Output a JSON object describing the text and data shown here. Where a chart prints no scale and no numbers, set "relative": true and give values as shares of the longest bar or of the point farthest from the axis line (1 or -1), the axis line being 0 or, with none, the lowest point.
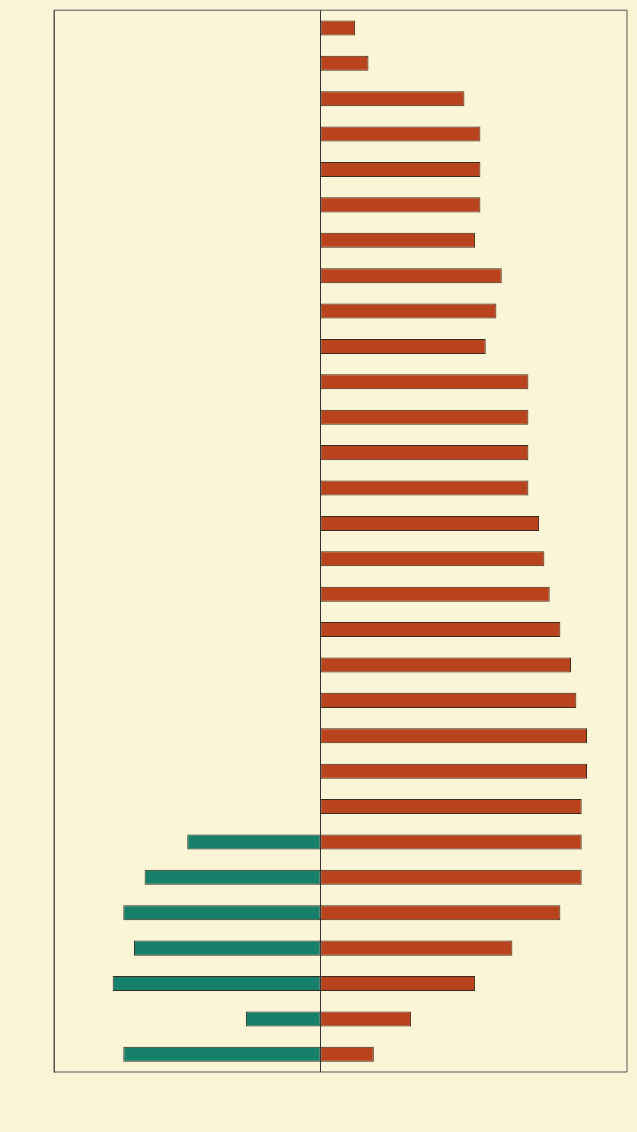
{
  "chart_data": {
    "type": "bar",
    "orientation": "horizontal",
    "stacked": true,
    "relative": true,
    "categories": [
      null,
      null,
      null,
      null,
      null,
      null,
      null,
      null,
      null,
      null,
      null,
      null,
      null,
      null,
      null,
      null,
      null,
      null,
      null,
      null,
      null,
      null,
      null,
      null,
      null,
      null,
      null,
      null,
      null,
      null
    ],
    "series": [
      {
        "color": "#b8431c",
        "values": [
          0.13,
          0.18,
          0.54,
          0.6,
          0.6,
          0.6,
          0.58,
          0.68,
          0.66,
          0.62,
          0.78,
          0.78,
          0.78,
          0.78,
          0.82,
          0.84,
          0.86,
          0.9,
          0.94,
          0.96,
          1,
          1,
          0.98,
          0.98,
          0.98,
          0.9,
          0.72,
          0.58,
          0.34,
          0.2
        ]
      },
      {
        "color": "#17806a",
        "values": [
          null,
          null,
          null,
          null,
          null,
          null,
          null,
          null,
          null,
          null,
          null,
          null,
          null,
          null,
          null,
          null,
          null,
          null,
          null,
          null,
          null,
          null,
          null,
          -0.5,
          -0.66,
          -0.74,
          -0.7,
          -0.78,
          -0.28,
          -0.74
        ]
      }
    ]
  }
}
